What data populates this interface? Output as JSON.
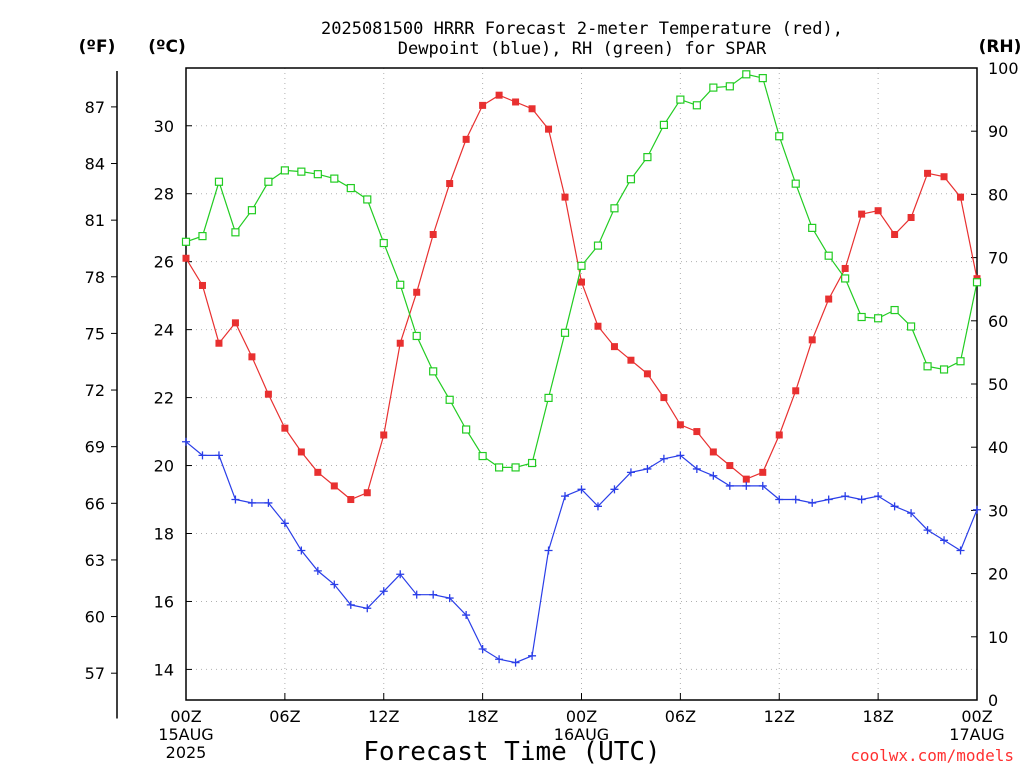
{
  "title_line1": "2025081500 HRRR Forecast 2-meter Temperature (red),",
  "title_line2": "Dewpoint (blue), RH (green) for SPAR",
  "unit_f": "(ºF)",
  "unit_c": "(ºC)",
  "unit_rh": "(RH)",
  "xlabel": "Forecast Time (UTC)",
  "credit": "coolwx.com/models",
  "colors": {
    "temperature": "#e83030",
    "dewpoint": "#2a3ee8",
    "rh": "#22cc22",
    "grid": "#b0b0b0"
  },
  "chart_data": {
    "type": "line",
    "x": [
      0,
      1,
      2,
      3,
      4,
      5,
      6,
      7,
      8,
      9,
      10,
      11,
      12,
      13,
      14,
      15,
      16,
      17,
      18,
      19,
      20,
      21,
      22,
      23,
      24,
      25,
      26,
      27,
      28,
      29,
      30,
      31,
      32,
      33,
      34,
      35,
      36,
      37,
      38,
      39,
      40,
      41,
      42,
      43,
      44,
      45,
      46,
      47,
      48
    ],
    "x_unit": "forecast hour",
    "x_ticks": [
      {
        "x": 0,
        "label": "00Z",
        "sub1": "15AUG",
        "sub2": "2025"
      },
      {
        "x": 6,
        "label": "06Z"
      },
      {
        "x": 12,
        "label": "12Z"
      },
      {
        "x": 18,
        "label": "18Z"
      },
      {
        "x": 24,
        "label": "00Z",
        "sub1": "16AUG"
      },
      {
        "x": 30,
        "label": "06Z"
      },
      {
        "x": 36,
        "label": "12Z"
      },
      {
        "x": 42,
        "label": "18Z"
      },
      {
        "x": 48,
        "label": "00Z",
        "sub1": "17AUG"
      }
    ],
    "xlim": [
      0,
      48
    ],
    "ylim_c": [
      13.1,
      31.7
    ],
    "ylim_rh": [
      0,
      100
    ],
    "yticks_c": [
      14,
      16,
      18,
      20,
      22,
      24,
      26,
      28,
      30
    ],
    "yticks_f": [
      57,
      60,
      63,
      66,
      69,
      72,
      75,
      78,
      81,
      84,
      87
    ],
    "yticks_rh": [
      0,
      10,
      20,
      30,
      40,
      50,
      60,
      70,
      80,
      90,
      100
    ],
    "grid": true,
    "series": [
      {
        "name": "Temperature",
        "units": "°C",
        "axis": "left",
        "marker": "filled-square",
        "values": [
          26.1,
          25.3,
          23.6,
          24.2,
          23.2,
          22.1,
          21.1,
          20.4,
          19.8,
          19.4,
          19.0,
          19.2,
          20.9,
          23.6,
          25.1,
          26.8,
          28.3,
          29.6,
          30.6,
          30.9,
          30.7,
          30.5,
          29.9,
          27.9,
          25.4,
          24.1,
          23.5,
          23.1,
          22.7,
          22.0,
          21.2,
          21.0,
          20.4,
          20.0,
          19.6,
          19.8,
          20.9,
          22.2,
          23.7,
          24.9,
          25.8,
          27.4,
          27.5,
          26.8,
          27.3,
          28.6,
          28.5,
          27.9,
          25.5
        ]
      },
      {
        "name": "Dewpoint",
        "units": "°C",
        "axis": "left",
        "marker": "plus",
        "values": [
          20.7,
          20.3,
          20.3,
          19.0,
          18.9,
          18.9,
          18.3,
          17.5,
          16.9,
          16.5,
          15.9,
          15.8,
          16.3,
          16.8,
          16.2,
          16.2,
          16.1,
          15.6,
          14.6,
          14.3,
          14.2,
          14.4,
          17.5,
          19.1,
          19.3,
          18.8,
          19.3,
          19.8,
          19.9,
          20.2,
          20.3,
          19.9,
          19.7,
          19.4,
          19.4,
          19.4,
          19.0,
          19.0,
          18.9,
          19.0,
          19.1,
          19.0,
          19.1,
          18.8,
          18.6,
          18.1,
          17.8,
          17.5,
          18.7
        ]
      },
      {
        "name": "RH",
        "units": "%",
        "axis": "right",
        "marker": "open-square",
        "values": [
          72.5,
          73.4,
          82.0,
          74.0,
          77.5,
          82.0,
          83.8,
          83.6,
          83.2,
          82.5,
          81.0,
          79.2,
          72.3,
          65.7,
          57.6,
          52.0,
          47.5,
          42.8,
          38.6,
          36.8,
          36.8,
          37.5,
          47.8,
          58.1,
          68.7,
          71.9,
          77.8,
          82.4,
          85.9,
          91.0,
          95.0,
          94.1,
          96.9,
          97.1,
          99.0,
          98.4,
          89.2,
          81.7,
          74.7,
          70.3,
          66.7,
          60.6,
          60.4,
          61.7,
          59.1,
          52.8,
          52.3,
          53.6,
          66.1
        ]
      }
    ]
  }
}
